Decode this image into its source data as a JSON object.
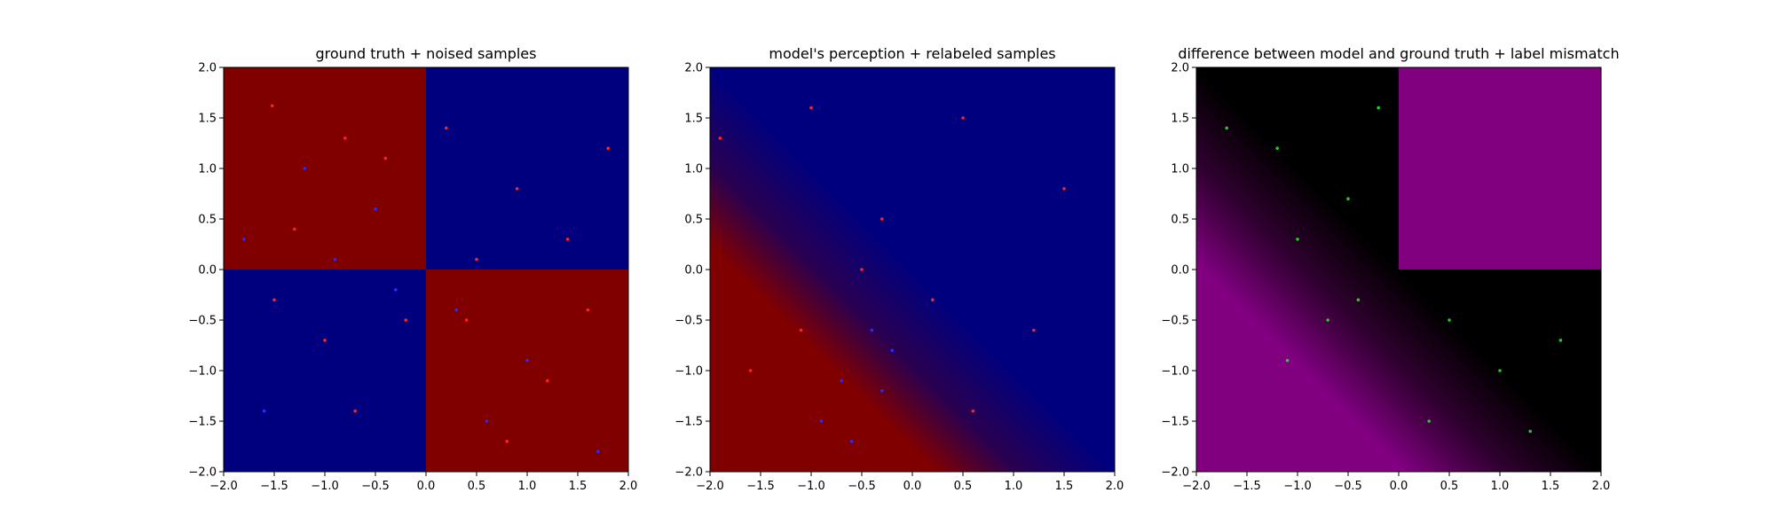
{
  "chart_data": [
    {
      "type": "scatter",
      "title": "ground truth + noised samples",
      "xlim": [
        -2.0,
        2.0
      ],
      "ylim": [
        -2.0,
        2.0
      ],
      "xticks": [
        "−2.0",
        "−1.5",
        "−1.0",
        "−0.5",
        "0.0",
        "0.5",
        "1.0",
        "1.5",
        "2.0"
      ],
      "yticks": [
        "−2.0",
        "−1.5",
        "−1.0",
        "−0.5",
        "0.0",
        "0.5",
        "1.0",
        "1.5",
        "2.0"
      ],
      "background": "sign(x*y) checkerboard: dark red where x<0,y>0 and x>0,y<0; dark blue elsewhere",
      "colors": {
        "red_region": "#800000",
        "blue_region": "#00007f",
        "red_points": "#ff2222",
        "blue_points": "#2b2bff"
      },
      "series": [
        {
          "color": "red",
          "points": [
            [
              -1.52,
              1.62
            ],
            [
              -0.8,
              1.3
            ],
            [
              -1.3,
              0.4
            ],
            [
              -0.4,
              1.1
            ],
            [
              0.2,
              1.4
            ],
            [
              0.9,
              0.8
            ],
            [
              1.4,
              0.3
            ],
            [
              0.5,
              0.1
            ],
            [
              1.8,
              1.2
            ],
            [
              -1.0,
              -0.7
            ],
            [
              -0.7,
              -1.4
            ],
            [
              -1.5,
              -0.3
            ],
            [
              -0.2,
              -0.5
            ],
            [
              0.4,
              -0.5
            ],
            [
              1.2,
              -1.1
            ],
            [
              0.8,
              -1.7
            ],
            [
              1.6,
              -0.4
            ]
          ]
        },
        {
          "color": "blue",
          "points": [
            [
              -1.2,
              1.0
            ],
            [
              -0.5,
              0.6
            ],
            [
              -1.8,
              0.3
            ],
            [
              -0.9,
              0.1
            ],
            [
              0.3,
              -0.4
            ],
            [
              1.0,
              -0.9
            ],
            [
              0.6,
              -1.5
            ],
            [
              1.7,
              -1.8
            ],
            [
              -0.3,
              -0.2
            ],
            [
              -1.6,
              -1.4
            ]
          ]
        }
      ]
    },
    {
      "type": "scatter",
      "title": "model's perception + relabeled samples",
      "xlim": [
        -2.0,
        2.0
      ],
      "ylim": [
        -2.0,
        2.0
      ],
      "xticks": [
        "−2.0",
        "−1.5",
        "−1.0",
        "−0.5",
        "0.0",
        "0.5",
        "1.0",
        "1.5",
        "2.0"
      ],
      "yticks": [
        "−2.0",
        "−1.5",
        "−1.0",
        "−0.5",
        "0.0",
        "0.5",
        "1.0",
        "1.5",
        "2.0"
      ],
      "background": "mostly dark blue; dark red diagonal band in lower-left from (-2,-2) toward (0,0)",
      "colors": {
        "red_region": "#800000",
        "blue_region": "#00007f",
        "red_points": "#ff2222",
        "blue_points": "#2b2bff"
      },
      "series": [
        {
          "color": "red",
          "points": [
            [
              -1.9,
              1.3
            ],
            [
              -1.0,
              1.6
            ],
            [
              -0.3,
              0.5
            ],
            [
              0.5,
              1.5
            ],
            [
              1.5,
              0.8
            ],
            [
              0.2,
              -0.3
            ],
            [
              1.2,
              -0.6
            ],
            [
              0.6,
              -1.4
            ],
            [
              -1.6,
              -1.0
            ],
            [
              -1.1,
              -0.6
            ],
            [
              -0.5,
              0.0
            ]
          ]
        },
        {
          "color": "blue",
          "points": [
            [
              -0.4,
              -0.6
            ],
            [
              -0.7,
              -1.1
            ],
            [
              -0.9,
              -1.5
            ],
            [
              -0.2,
              -0.8
            ],
            [
              -0.6,
              -1.7
            ],
            [
              -0.3,
              -1.2
            ]
          ]
        }
      ]
    },
    {
      "type": "scatter",
      "title": "difference between model and ground truth + label mismatch",
      "xlim": [
        -2.0,
        2.0
      ],
      "ylim": [
        -2.0,
        2.0
      ],
      "xticks": [
        "−2.0",
        "−1.5",
        "−1.0",
        "−0.5",
        "0.0",
        "0.5",
        "1.0",
        "1.5",
        "2.0"
      ],
      "yticks": [
        "−2.0",
        "−1.5",
        "−1.0",
        "−0.5",
        "0.0",
        "0.5",
        "1.0",
        "1.5",
        "2.0"
      ],
      "background": "black where model matches; purple in upper-right quadrant and in lower-left band",
      "colors": {
        "match": "#000000",
        "mismatch": "#800080",
        "points": "#22cc22"
      },
      "series": [
        {
          "color": "green",
          "points": [
            [
              -1.7,
              1.4
            ],
            [
              -1.2,
              1.2
            ],
            [
              -0.5,
              0.7
            ],
            [
              -0.2,
              1.6
            ],
            [
              -1.0,
              0.3
            ],
            [
              -0.7,
              -0.5
            ],
            [
              -1.1,
              -0.9
            ],
            [
              -0.4,
              -0.3
            ],
            [
              0.5,
              -0.5
            ],
            [
              1.0,
              -1.0
            ],
            [
              1.6,
              -0.7
            ],
            [
              0.3,
              -1.5
            ],
            [
              1.3,
              -1.6
            ]
          ]
        }
      ]
    }
  ]
}
